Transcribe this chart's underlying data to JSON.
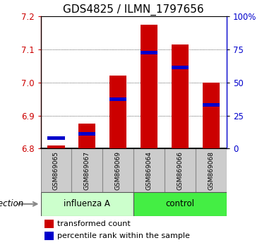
{
  "title": "GDS4825 / ILMN_1797656",
  "samples": [
    "GSM869065",
    "GSM869067",
    "GSM869069",
    "GSM869064",
    "GSM869066",
    "GSM869068"
  ],
  "groups": [
    "influenza A",
    "influenza A",
    "influenza A",
    "control",
    "control",
    "control"
  ],
  "group_labels": [
    "influenza A",
    "control"
  ],
  "bar_base": 6.8,
  "ylim_left": [
    6.8,
    7.2
  ],
  "ylim_right": [
    0,
    100
  ],
  "yticks_left": [
    6.8,
    6.9,
    7.0,
    7.1,
    7.2
  ],
  "yticks_right": [
    0,
    25,
    50,
    75,
    100
  ],
  "ytick_labels_right": [
    "0",
    "25",
    "50",
    "75",
    "100%"
  ],
  "red_values": [
    6.81,
    6.875,
    7.02,
    7.175,
    7.115,
    7.0
  ],
  "blue_values_y": [
    6.832,
    6.845,
    6.95,
    7.09,
    7.045,
    6.932
  ],
  "bar_color": "#cc0000",
  "blue_color": "#0000cc",
  "influenza_color": "#ccffcc",
  "control_color": "#44ee44",
  "sample_box_color": "#cccccc",
  "infection_label": "infection",
  "legend_items": [
    "transformed count",
    "percentile rank within the sample"
  ],
  "title_fontsize": 11,
  "tick_fontsize": 8.5,
  "sample_fontsize": 6.5,
  "group_fontsize": 8.5,
  "legend_fontsize": 8
}
